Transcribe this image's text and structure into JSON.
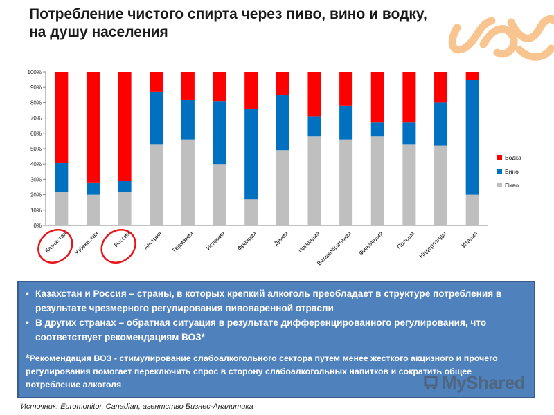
{
  "title": {
    "line1": "Потребление чистого спирта через пиво, вино и водку,",
    "line2": "на душу населения"
  },
  "colors": {
    "vodka": "#ff0000",
    "wine": "#0070c0",
    "beer": "#bfbfbf",
    "highlight_circle": "#e8141b",
    "box_bg": "#4f81bd",
    "deco": "#f6b26b"
  },
  "chart_data": {
    "type": "bar",
    "stacked": "percent",
    "categories": [
      "Казахстан",
      "Узбекистан",
      "Россия",
      "Австрия",
      "Германия",
      "Испания",
      "Франция",
      "Дания",
      "Ирландия",
      "Великобритания",
      "Финляндия",
      "Польша",
      "Нидерланды",
      "Италия"
    ],
    "series": [
      {
        "name": "Пиво",
        "color": "#bfbfbf",
        "values": [
          22,
          20,
          22,
          53,
          56,
          40,
          17,
          49,
          58,
          56,
          58,
          53,
          52,
          20
        ]
      },
      {
        "name": "Вино",
        "color": "#0070c0",
        "values": [
          19,
          8,
          7,
          34,
          26,
          41,
          59,
          36,
          13,
          22,
          9,
          14,
          28,
          75
        ]
      },
      {
        "name": "Водка",
        "color": "#ff0000",
        "values": [
          59,
          72,
          71,
          13,
          18,
          19,
          24,
          15,
          29,
          22,
          33,
          33,
          20,
          5
        ]
      }
    ],
    "y_ticks": [
      "0%",
      "10%",
      "20%",
      "30%",
      "40%",
      "50%",
      "60%",
      "70%",
      "80%",
      "90%",
      "100%"
    ],
    "ylim": [
      0,
      100
    ],
    "legend_order": [
      "Водка",
      "Вино",
      "Пиво"
    ],
    "legend_position": "right",
    "grid": false,
    "highlighted_categories": [
      "Казахстан",
      "Россия"
    ]
  },
  "box": {
    "bullet1": "Казахстан и Россия – страны, в которых крепкий алкоголь преобладает в структуре потребления в результате чрезмерного регулирования пивоваренной отрасли",
    "bullet2": "В других странах – обратная ситуация в результате дифференцированного регулирования, что соответствует рекомендациям ВОЗ*",
    "note_star": "*",
    "note": "Рекомендация ВОЗ - стимулирование слабоалкогольного сектора путем менее жесткого акцизного и прочего регулирования помогает переключить спрос в сторону слабоалкогольных напитков и сократить общее потребление алкоголя"
  },
  "watermark": "MyShared",
  "source": "Источник: Euromonitor, Canadian, агентство Бизнес-Аналитика"
}
